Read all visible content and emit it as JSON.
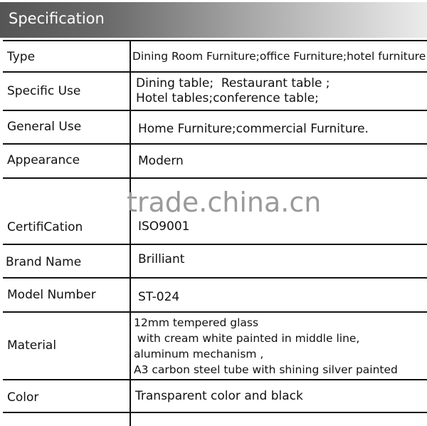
{
  "header": {
    "title": "Specification"
  },
  "watermark": "trade.china.cn",
  "rows": [
    {
      "label": "Type",
      "value": "Dining Room Furniture;office Furniture;hotel furniture"
    },
    {
      "label": "Specific Use",
      "value": "Dining table;  Restaurant table ;\nHotel tables;conference table;"
    },
    {
      "label": "General Use",
      "value": "Home Furniture;commercial Furniture."
    },
    {
      "label": "Appearance",
      "value": "Modern"
    },
    {
      "label": "CertifiCation",
      "value": "ISO9001"
    },
    {
      "label": "Brand Name",
      "value": "Brilliant"
    },
    {
      "label": "Model Number",
      "value": "ST-024"
    },
    {
      "label": "Material",
      "value": "12mm tempered glass\n with cream white painted in middle line,\naluminum mechanism ,\nA3 carbon steel tube with shining silver painted"
    },
    {
      "label": "Color",
      "value": "Transparent color and black"
    },
    {
      "label": "",
      "value": ""
    }
  ]
}
